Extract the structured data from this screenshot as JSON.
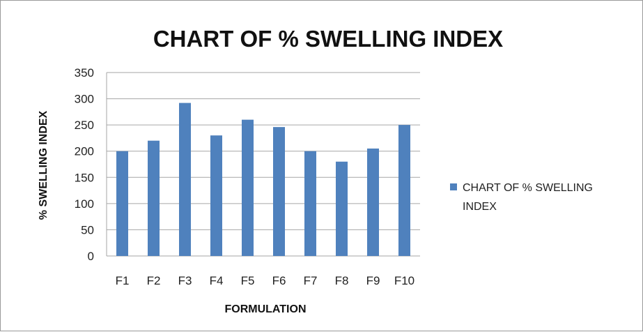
{
  "chart_data": {
    "type": "bar",
    "title": "CHART OF % SWELLING INDEX",
    "xlabel": "FORMULATION",
    "ylabel": "% SWELLING INDEX",
    "categories": [
      "F1",
      "F2",
      "F3",
      "F4",
      "F5",
      "F6",
      "F7",
      "F8",
      "F9",
      "F10"
    ],
    "series": [
      {
        "name": "CHART OF % SWELLING INDEX",
        "values": [
          200,
          220,
          292,
          230,
          260,
          246,
          200,
          180,
          205,
          250
        ],
        "color": "#4f81bd"
      }
    ],
    "ylim": [
      0,
      350
    ],
    "yticks": [
      "0",
      "50",
      "100",
      "150",
      "200",
      "250",
      "300",
      "350"
    ],
    "legend": {
      "position": "right",
      "lines": [
        "CHART OF % SWELLING",
        "INDEX"
      ]
    },
    "grid": true,
    "gridline_color": "#a6a6a6"
  }
}
